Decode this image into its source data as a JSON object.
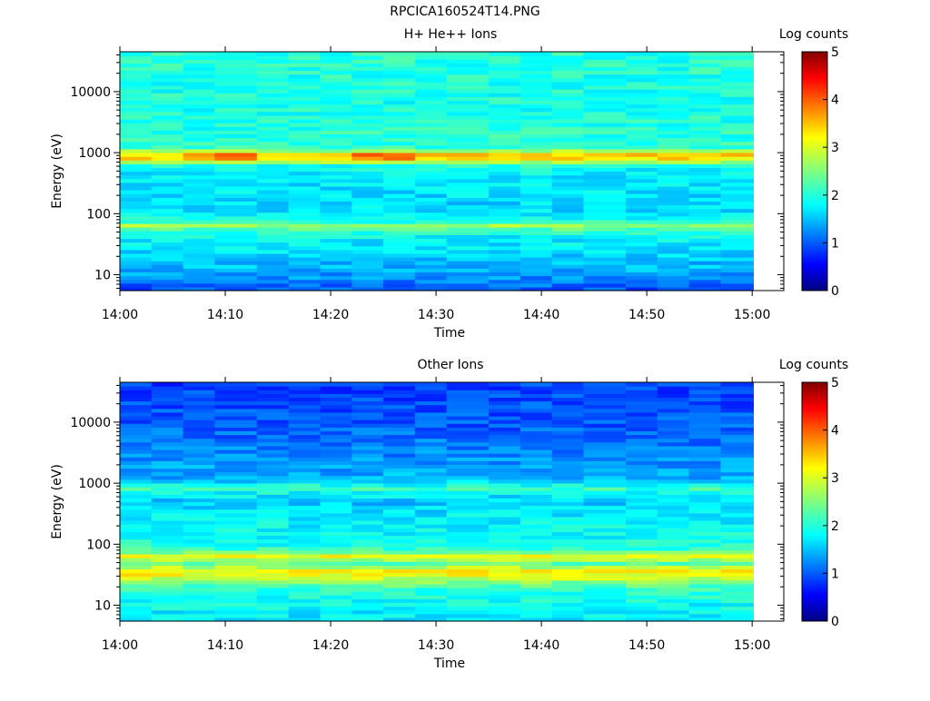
{
  "page_title": "RPCICA160524T14.PNG",
  "chart_data": [
    {
      "type": "heatmap",
      "title": "H+ He++ Ions",
      "xlabel": "Time",
      "ylabel": "Energy (eV)",
      "x_ticks": [
        "14:00",
        "14:10",
        "14:20",
        "14:30",
        "14:40",
        "14:50",
        "15:00"
      ],
      "y_ticks": [
        "10",
        "100",
        "1000",
        "10000"
      ],
      "y_scale": "log",
      "ylim": [
        5.5,
        45000
      ],
      "xlim": [
        "14:00",
        "15:03"
      ],
      "colorbar": {
        "label": "Log counts",
        "ticks": [
          "0",
          "1",
          "2",
          "3",
          "4",
          "5"
        ],
        "range": [
          0,
          5
        ]
      },
      "x_bins": [
        "14:00",
        "14:03",
        "14:06",
        "14:09",
        "14:13",
        "14:16",
        "14:19",
        "14:22",
        "14:25",
        "14:28",
        "14:31",
        "14:35",
        "14:38",
        "14:41",
        "14:44",
        "14:48",
        "14:51",
        "14:54",
        "14:57"
      ],
      "energy_profile": [
        [
          6,
          1.05
        ],
        [
          8,
          1.25
        ],
        [
          10,
          1.4
        ],
        [
          12,
          1.5
        ],
        [
          15,
          1.55
        ],
        [
          20,
          1.65
        ],
        [
          25,
          1.75
        ],
        [
          35,
          1.8
        ],
        [
          45,
          1.9
        ],
        [
          55,
          2.2
        ],
        [
          62,
          2.7
        ],
        [
          68,
          2.55
        ],
        [
          75,
          2.05
        ],
        [
          100,
          1.75
        ],
        [
          150,
          1.7
        ],
        [
          250,
          1.75
        ],
        [
          400,
          1.8
        ],
        [
          600,
          1.9
        ],
        [
          800,
          3.2
        ],
        [
          900,
          3.45
        ],
        [
          1000,
          3.1
        ],
        [
          1200,
          2.1
        ],
        [
          2000,
          2.05
        ],
        [
          5000,
          2.0
        ],
        [
          10000,
          2.0
        ],
        [
          45000,
          2.05
        ]
      ],
      "bright_bins_near_900eV": [
        "14:06",
        "14:09",
        "14:22",
        "14:25"
      ]
    },
    {
      "type": "heatmap",
      "title": "Other Ions",
      "xlabel": "Time",
      "ylabel": "Energy (eV)",
      "x_ticks": [
        "14:00",
        "14:10",
        "14:20",
        "14:30",
        "14:40",
        "14:50",
        "15:00"
      ],
      "y_ticks": [
        "10",
        "100",
        "1000",
        "10000"
      ],
      "y_scale": "log",
      "ylim": [
        5.5,
        45000
      ],
      "xlim": [
        "14:00",
        "15:03"
      ],
      "colorbar": {
        "label": "Log counts",
        "ticks": [
          "0",
          "1",
          "2",
          "3",
          "4",
          "5"
        ],
        "range": [
          0,
          5
        ]
      },
      "x_bins": [
        "14:00",
        "14:03",
        "14:06",
        "14:09",
        "14:13",
        "14:16",
        "14:19",
        "14:22",
        "14:25",
        "14:28",
        "14:31",
        "14:35",
        "14:38",
        "14:41",
        "14:44",
        "14:48",
        "14:51",
        "14:54",
        "14:57"
      ],
      "energy_profile": [
        [
          6,
          1.8
        ],
        [
          8,
          1.85
        ],
        [
          10,
          1.9
        ],
        [
          15,
          2.0
        ],
        [
          20,
          2.2
        ],
        [
          25,
          2.6
        ],
        [
          30,
          3.0
        ],
        [
          35,
          3.2
        ],
        [
          40,
          2.9
        ],
        [
          50,
          2.3
        ],
        [
          60,
          2.9
        ],
        [
          65,
          3.1
        ],
        [
          72,
          2.5
        ],
        [
          90,
          2.0
        ],
        [
          150,
          1.9
        ],
        [
          300,
          1.8
        ],
        [
          500,
          1.6
        ],
        [
          700,
          1.9
        ],
        [
          850,
          2.2
        ],
        [
          950,
          1.9
        ],
        [
          1200,
          1.5
        ],
        [
          3000,
          1.3
        ],
        [
          10000,
          1.05
        ],
        [
          20000,
          1.0
        ],
        [
          45000,
          0.95
        ]
      ]
    }
  ]
}
